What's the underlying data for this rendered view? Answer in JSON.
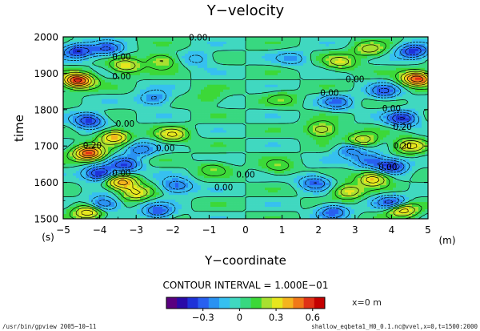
{
  "chart_data": {
    "type": "heatmap",
    "title": "Y−velocity",
    "xlabel": "Y−coordinate",
    "ylabel": "time",
    "x_unit": "(m)",
    "y_unit": "(s)",
    "xlim": [
      -5,
      5
    ],
    "ylim": [
      1500,
      2000
    ],
    "x_ticks": [
      "−5",
      "−4",
      "−3",
      "−2",
      "−1",
      "0",
      "1",
      "2",
      "3",
      "4",
      "5"
    ],
    "y_ticks": [
      "1500",
      "1600",
      "1700",
      "1800",
      "1900",
      "2000"
    ],
    "contour_interval_text": "CONTOUR INTERVAL = 1.000E−01",
    "colorbar": {
      "ticks": [
        "−0.3",
        "0",
        "0.3",
        "0.6"
      ],
      "tick_values": [
        -0.3,
        0,
        0.3,
        0.6
      ],
      "range": [
        -0.6,
        0.7
      ],
      "colors": [
        "#5a0080",
        "#2a0aa8",
        "#1e32d8",
        "#2860f0",
        "#2a92f2",
        "#36c0f0",
        "#40d8c0",
        "#38d880",
        "#3cd838",
        "#a8e030",
        "#e6e61e",
        "#f4b41e",
        "#f07818",
        "#e03216",
        "#c40000"
      ],
      "color_level_values": [
        -0.6,
        -0.5,
        -0.4,
        -0.3,
        -0.2,
        -0.1,
        0.0,
        0.05,
        0.1,
        0.2,
        0.3,
        0.4,
        0.5,
        0.6,
        0.7
      ]
    },
    "contour_labels": [
      {
        "text": "0.00",
        "x": -1.3,
        "y": 1990
      },
      {
        "text": "0.00",
        "x": -3.4,
        "y": 1937
      },
      {
        "text": "0.00",
        "x": -3.4,
        "y": 1883
      },
      {
        "text": "0.00",
        "x": -3.3,
        "y": 1753
      },
      {
        "text": "0.20",
        "x": -4.2,
        "y": 1694
      },
      {
        "text": "0.00",
        "x": -2.2,
        "y": 1686
      },
      {
        "text": "0.00",
        "x": -3.4,
        "y": 1618
      },
      {
        "text": "0.00",
        "x": 0.0,
        "y": 1613
      },
      {
        "text": "0.00",
        "x": -0.6,
        "y": 1578
      },
      {
        "text": "0.00",
        "x": 2.3,
        "y": 1838
      },
      {
        "text": "0.00",
        "x": 3.0,
        "y": 1876
      },
      {
        "text": "0.00",
        "x": 4.0,
        "y": 1795
      },
      {
        "text": "0.20",
        "x": 4.3,
        "y": 1745
      },
      {
        "text": "0.20",
        "x": 4.3,
        "y": 1693
      },
      {
        "text": "0.00",
        "x": 3.9,
        "y": 1634
      }
    ],
    "features": [
      {
        "x": -4.6,
        "y": 1880,
        "value": 0.65
      },
      {
        "x": -4.3,
        "y": 1680,
        "value": 0.6
      },
      {
        "x": -4.3,
        "y": 1518,
        "value": 0.4
      },
      {
        "x": -3.6,
        "y": 1725,
        "value": 0.4
      },
      {
        "x": -3.4,
        "y": 1600,
        "value": 0.45
      },
      {
        "x": -3.0,
        "y": 1570,
        "value": 0.3
      },
      {
        "x": -2.0,
        "y": 1730,
        "value": 0.3
      },
      {
        "x": -2.3,
        "y": 1935,
        "value": 0.25
      },
      {
        "x": -3.3,
        "y": 1920,
        "value": 0.3
      },
      {
        "x": -4.6,
        "y": 1960,
        "value": -0.4
      },
      {
        "x": -3.8,
        "y": 1965,
        "value": -0.3
      },
      {
        "x": -4.3,
        "y": 1770,
        "value": -0.4
      },
      {
        "x": -4.0,
        "y": 1625,
        "value": -0.45
      },
      {
        "x": -3.3,
        "y": 1648,
        "value": -0.35
      },
      {
        "x": -2.5,
        "y": 1830,
        "value": -0.25
      },
      {
        "x": -1.9,
        "y": 1590,
        "value": -0.3
      },
      {
        "x": -2.9,
        "y": 1690,
        "value": -0.25
      },
      {
        "x": -2.4,
        "y": 1520,
        "value": -0.3
      },
      {
        "x": -3.9,
        "y": 1540,
        "value": -0.35
      },
      {
        "x": 4.7,
        "y": 1885,
        "value": 0.6
      },
      {
        "x": 4.5,
        "y": 1700,
        "value": 0.35
      },
      {
        "x": 4.3,
        "y": 1525,
        "value": 0.4
      },
      {
        "x": 3.2,
        "y": 1715,
        "value": 0.3
      },
      {
        "x": 3.5,
        "y": 1610,
        "value": 0.4
      },
      {
        "x": 2.8,
        "y": 1575,
        "value": 0.3
      },
      {
        "x": 2.1,
        "y": 1745,
        "value": 0.3
      },
      {
        "x": 2.6,
        "y": 1930,
        "value": 0.25
      },
      {
        "x": 3.4,
        "y": 1965,
        "value": 0.25
      },
      {
        "x": 4.6,
        "y": 1960,
        "value": -0.4
      },
      {
        "x": 3.8,
        "y": 1850,
        "value": -0.3
      },
      {
        "x": 4.3,
        "y": 1775,
        "value": -0.4
      },
      {
        "x": 4.0,
        "y": 1645,
        "value": -0.4
      },
      {
        "x": 3.4,
        "y": 1660,
        "value": -0.3
      },
      {
        "x": 2.5,
        "y": 1820,
        "value": -0.25
      },
      {
        "x": 1.9,
        "y": 1600,
        "value": -0.3
      },
      {
        "x": 2.9,
        "y": 1690,
        "value": -0.25
      },
      {
        "x": 2.4,
        "y": 1520,
        "value": -0.3
      },
      {
        "x": 4.0,
        "y": 1545,
        "value": -0.35
      },
      {
        "x": -1.0,
        "y": 1830,
        "value": 0.12
      },
      {
        "x": 1.0,
        "y": 1830,
        "value": 0.12
      },
      {
        "x": -0.9,
        "y": 1640,
        "value": 0.15
      },
      {
        "x": 0.9,
        "y": 1640,
        "value": 0.15
      },
      {
        "x": -1.3,
        "y": 1940,
        "value": -0.15
      },
      {
        "x": 1.3,
        "y": 1940,
        "value": -0.15
      }
    ]
  },
  "annotations": {
    "cross_section": "x=0 m",
    "program": "/usr/bin/gpview  2005−10−11",
    "source": "shallow_eqbeta1_H0_0.1.nc@vvel,x=0,t=1500:2000"
  }
}
